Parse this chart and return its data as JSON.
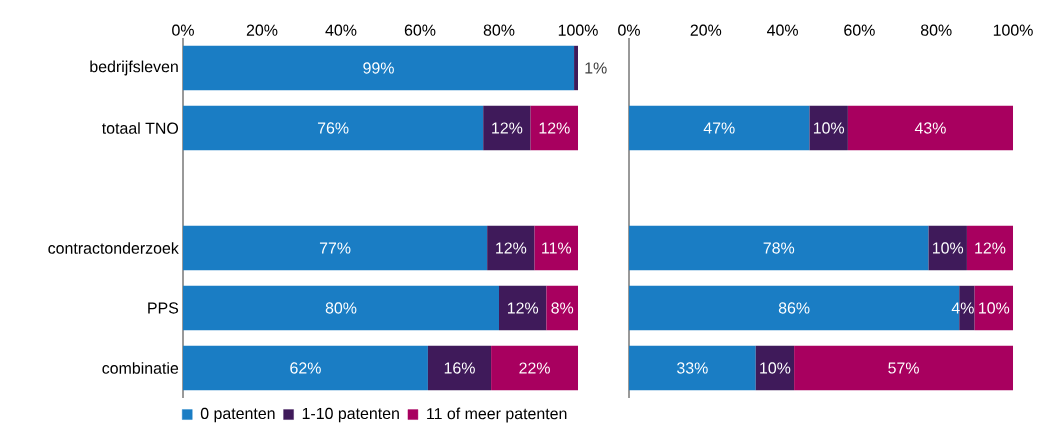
{
  "chart_data": [
    {
      "type": "bar",
      "orientation": "horizontal",
      "stacked": true,
      "categories": [
        "bedrijfsleven",
        "totaal TNO",
        null,
        "contractonderzoek",
        "PPS",
        "combinatie"
      ],
      "series": [
        {
          "name": "0 patenten",
          "color": "#1a7dc4",
          "values": [
            99,
            76,
            null,
            77,
            80,
            62
          ],
          "value_labels": [
            "99%",
            "76%",
            null,
            "77%",
            "80%",
            "62%"
          ]
        },
        {
          "name": "1-10 patenten",
          "color": "#3f1a5a",
          "values": [
            1,
            12,
            null,
            12,
            12,
            16
          ],
          "value_labels": [
            "1%",
            "12%",
            null,
            "12%",
            "12%",
            "16%"
          ]
        },
        {
          "name": "11 of meer patenten",
          "color": "#a8005f",
          "values": [
            0,
            12,
            null,
            11,
            8,
            22
          ],
          "value_labels": [
            null,
            "12%",
            null,
            "11%",
            "8%",
            "22%"
          ]
        }
      ],
      "xlim": [
        0,
        100
      ],
      "xticks": [
        {
          "value": 0,
          "label": "0%"
        },
        {
          "value": 20,
          "label": "20%"
        },
        {
          "value": 40,
          "label": "40%"
        },
        {
          "value": 60,
          "label": "60%"
        },
        {
          "value": 80,
          "label": "80%"
        },
        {
          "value": 100,
          "label": "100%"
        }
      ],
      "legend": "bottom"
    },
    {
      "type": "bar",
      "orientation": "horizontal",
      "stacked": true,
      "categories": [
        null,
        null,
        null,
        null,
        null,
        null
      ],
      "series": [
        {
          "color": "#1a7dc4",
          "values": [
            null,
            47,
            null,
            78,
            86,
            33
          ],
          "value_labels": [
            null,
            "47%",
            null,
            "78%",
            "86%",
            "33%"
          ]
        },
        {
          "color": "#3f1a5a",
          "values": [
            null,
            10,
            null,
            10,
            4,
            10
          ],
          "value_labels": [
            null,
            "10%",
            null,
            "10%",
            "4%",
            "10%"
          ]
        },
        {
          "color": "#a8005f",
          "values": [
            null,
            43,
            null,
            12,
            10,
            57
          ],
          "value_labels": [
            null,
            "43%",
            null,
            "12%",
            "10%",
            "57%"
          ]
        }
      ],
      "xlim": [
        0,
        100
      ],
      "xticks": [
        {
          "value": 0,
          "label": "0%"
        },
        {
          "value": 20,
          "label": "20%"
        },
        {
          "value": 40,
          "label": "40%"
        },
        {
          "value": 60,
          "label": "60%"
        },
        {
          "value": 80,
          "label": "80%"
        },
        {
          "value": 100,
          "label": "100%"
        }
      ],
      "tick_labels": "x"
    }
  ]
}
